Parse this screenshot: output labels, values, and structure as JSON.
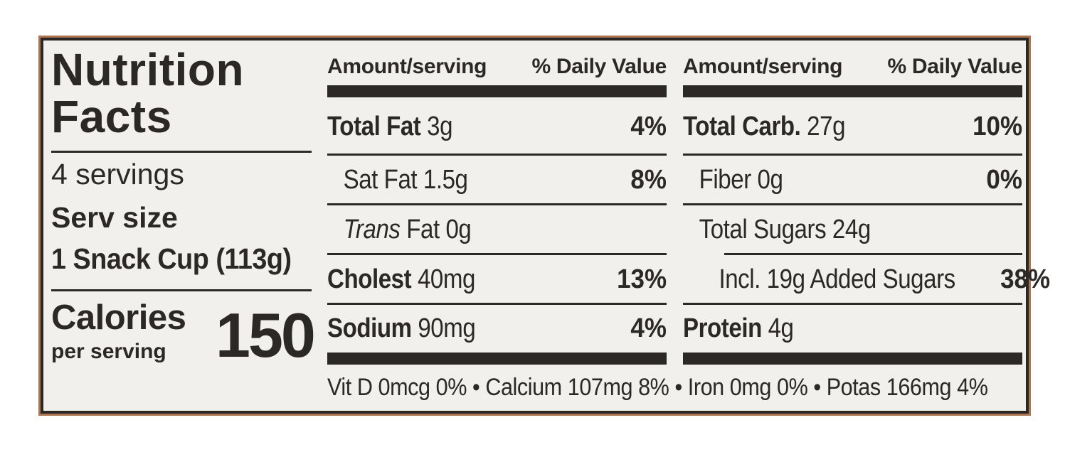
{
  "label": {
    "title_line1": "Nutrition",
    "title_line2": "Facts",
    "servings": "4 servings",
    "serving_size_label": "Serv size",
    "serving_size_value": "1 Snack Cup (113g)",
    "calories_label": "Calories",
    "calories_sublabel": "per serving",
    "calories_value": "150"
  },
  "column_header": {
    "amount": "Amount/serving",
    "daily_value": "% Daily Value"
  },
  "nutrients_col1": [
    {
      "name": "Total Fat",
      "amount": "3g",
      "daily_value": "4%"
    },
    {
      "name": "Sat Fat",
      "amount": "1.5g",
      "daily_value": "8%"
    },
    {
      "name_italic": "Trans",
      "name_rest": "Fat",
      "amount": "0g",
      "daily_value": ""
    },
    {
      "name": "Cholest",
      "amount": "40mg",
      "daily_value": "13%"
    },
    {
      "name": "Sodium",
      "amount": "90mg",
      "daily_value": "4%"
    }
  ],
  "nutrients_col2": [
    {
      "name": "Total Carb.",
      "amount": "27g",
      "daily_value": "10%"
    },
    {
      "name": "Fiber",
      "amount": "0g",
      "daily_value": "0%"
    },
    {
      "name": "Total Sugars",
      "amount": "24g",
      "daily_value": ""
    },
    {
      "name": "Incl. 19g Added Sugars",
      "amount": "",
      "daily_value": "38%"
    },
    {
      "name": "Protein",
      "amount": "4g",
      "daily_value": ""
    }
  ],
  "micronutrients": {
    "items": [
      "Vit D 0mcg 0%",
      "Calcium 107mg 8%",
      "Iron 0mg 0%",
      "Potas 166mg 4%"
    ],
    "separator": " • "
  },
  "colors": {
    "text": "#2b2825",
    "label_background": "#f2f0ed",
    "page_background": "#ffffff",
    "border": "#2a2724",
    "outer_accent_line": "#ad7550"
  }
}
